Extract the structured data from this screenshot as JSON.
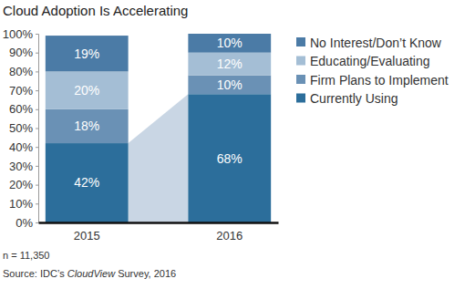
{
  "chart_data": {
    "type": "bar",
    "title": "Cloud Adoption Is Accelerating",
    "categories": [
      "2015",
      "2016"
    ],
    "stacked": true,
    "data_labels": true,
    "legend": "right",
    "series": [
      {
        "name": "Currently Using",
        "color": "#2c6e9b",
        "values": [
          42,
          68
        ],
        "value_labels": [
          "42%",
          "68%"
        ]
      },
      {
        "name": "Firm Plans to Implement",
        "color": "#6a91b5",
        "values": [
          18,
          10
        ],
        "value_labels": [
          "18%",
          "10%"
        ]
      },
      {
        "name": "Educating/Evaluating",
        "color": "#a4bed5",
        "values": [
          20,
          12
        ],
        "value_labels": [
          "20%",
          "12%"
        ]
      },
      {
        "name": "No Interest/Don’t Know",
        "color": "#4b7ba6",
        "values": [
          19,
          10
        ],
        "value_labels": [
          "19%",
          "10%"
        ]
      }
    ],
    "ylim": [
      0,
      100
    ],
    "yticks": [
      {
        "value": 0,
        "label": "0%"
      },
      {
        "value": 10,
        "label": "10%"
      },
      {
        "value": 20,
        "label": "20%"
      },
      {
        "value": 30,
        "label": "30%"
      },
      {
        "value": 40,
        "label": "40%"
      },
      {
        "value": 50,
        "label": "50%"
      },
      {
        "value": 60,
        "label": "60%"
      },
      {
        "value": 70,
        "label": "70%"
      },
      {
        "value": 80,
        "label": "80%"
      },
      {
        "value": 90,
        "label": "90%"
      },
      {
        "value": 100,
        "label": "100%"
      }
    ],
    "annotations": [
      "n = 11,350"
    ],
    "source_parts": [
      "Source: IDC’s ",
      "CloudView",
      " Survey, 2016"
    ]
  }
}
